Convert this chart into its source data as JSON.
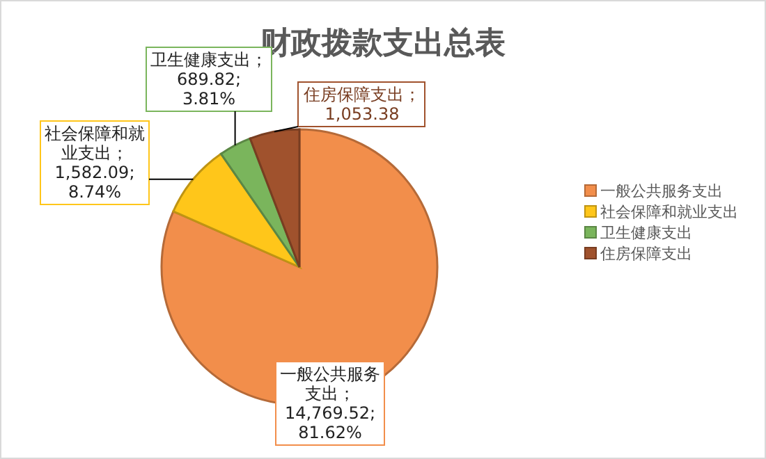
{
  "chart_data": {
    "type": "pie",
    "title": "财政拨款支出总表",
    "categories": [
      "一般公共服务支出",
      "社会保障和就业支出",
      "卫生健康支出",
      "住房保障支出"
    ],
    "values": [
      14769.52,
      1582.09,
      689.82,
      1053.38
    ],
    "colors": [
      "#f28e4b",
      "#ffc61a",
      "#7ab55c",
      "#a0522d"
    ],
    "value_labels": [
      "一般公共服务支出；\n14,769.52;\n81.62%",
      "社会保障和就业支出；\n1,582.09;\n8.74%",
      "卫生健康支出；\n689.82;\n3.81%",
      "住房保障支出；\n1,053.38"
    ],
    "legend": "right"
  }
}
